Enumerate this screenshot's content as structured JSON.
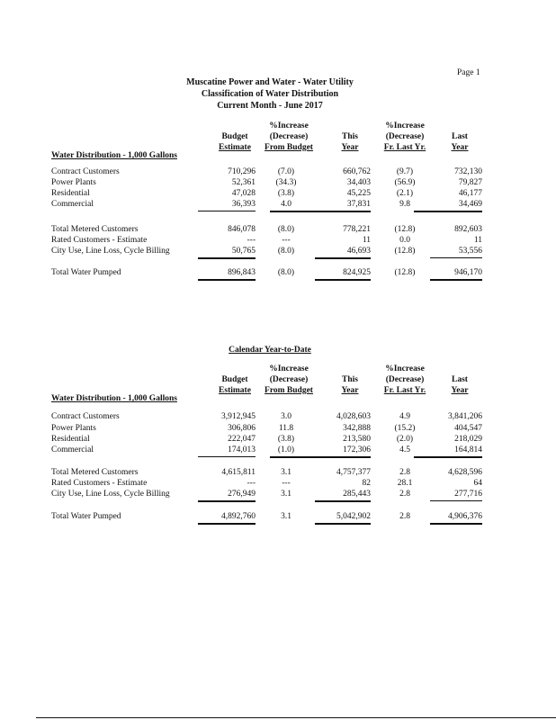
{
  "page_label": "Page 1",
  "title": [
    "Muscatine Power and Water - Water Utility",
    "Classification of Water Distribution",
    "Current Month - June 2017"
  ],
  "columns": {
    "budget": [
      "Budget",
      "Estimate"
    ],
    "pct_budget": [
      "%Increase",
      "(Decrease)",
      "From Budget"
    ],
    "this_year": [
      "This",
      "Year"
    ],
    "pct_last": [
      "%Increase",
      "(Decrease)",
      "Fr. Last Yr."
    ],
    "last_year": [
      "Last",
      "Year"
    ]
  },
  "section_label": "Water Distribution - 1,000 Gallons",
  "current_month": {
    "rows": [
      {
        "label": "Contract Customers",
        "budget": "710,296",
        "pct_budget": "(7.0)",
        "this_year": "660,762",
        "pct_last": "(9.7)",
        "last_year": "732,130"
      },
      {
        "label": "Power Plants",
        "budget": "52,361",
        "pct_budget": "(34.3)",
        "this_year": "34,403",
        "pct_last": "(56.9)",
        "last_year": "79,827"
      },
      {
        "label": "Residential",
        "budget": "47,028",
        "pct_budget": "(3.8)",
        "this_year": "45,225",
        "pct_last": "(2.1)",
        "last_year": "46,177"
      },
      {
        "label": "Commercial",
        "budget": "36,393",
        "pct_budget": "4.0",
        "this_year": "37,831",
        "pct_last": "9.8",
        "last_year": "34,469"
      },
      {
        "label": "Total Metered Customers",
        "budget": "846,078",
        "pct_budget": "(8.0)",
        "this_year": "778,221",
        "pct_last": "(12.8)",
        "last_year": "892,603"
      },
      {
        "label": "Rated Customers - Estimate",
        "budget": "---",
        "pct_budget": "---",
        "this_year": "11",
        "pct_last": "0.0",
        "last_year": "11"
      },
      {
        "label": "City Use, Line Loss, Cycle Billing",
        "budget": "50,765",
        "pct_budget": "(8.0)",
        "this_year": "46,693",
        "pct_last": "(12.8)",
        "last_year": "53,556"
      },
      {
        "label": "Total Water Pumped",
        "budget": "896,843",
        "pct_budget": "(8.0)",
        "this_year": "824,925",
        "pct_last": "(12.8)",
        "last_year": "946,170"
      }
    ]
  },
  "ytd": {
    "heading": "Calendar Year-to-Date",
    "rows": [
      {
        "label": "Contract Customers",
        "budget": "3,912,945",
        "pct_budget": "3.0",
        "this_year": "4,028,603",
        "pct_last": "4.9",
        "last_year": "3,841,206"
      },
      {
        "label": "Power Plants",
        "budget": "306,806",
        "pct_budget": "11.8",
        "this_year": "342,888",
        "pct_last": "(15.2)",
        "last_year": "404,547"
      },
      {
        "label": "Residential",
        "budget": "222,047",
        "pct_budget": "(3.8)",
        "this_year": "213,580",
        "pct_last": "(2.0)",
        "last_year": "218,029"
      },
      {
        "label": "Commercial",
        "budget": "174,013",
        "pct_budget": "(1.0)",
        "this_year": "172,306",
        "pct_last": "4.5",
        "last_year": "164,814"
      },
      {
        "label": "Total Metered Customers",
        "budget": "4,615,811",
        "pct_budget": "3.1",
        "this_year": "4,757,377",
        "pct_last": "2.8",
        "last_year": "4,628,596"
      },
      {
        "label": "Rated Customers - Estimate",
        "budget": "---",
        "pct_budget": "---",
        "this_year": "82",
        "pct_last": "28.1",
        "last_year": "64"
      },
      {
        "label": "City Use, Line Loss, Cycle Billing",
        "budget": "276,949",
        "pct_budget": "3.1",
        "this_year": "285,443",
        "pct_last": "2.8",
        "last_year": "277,716"
      },
      {
        "label": "Total Water Pumped",
        "budget": "4,892,760",
        "pct_budget": "3.1",
        "this_year": "5,042,902",
        "pct_last": "2.8",
        "last_year": "4,906,376"
      }
    ]
  }
}
